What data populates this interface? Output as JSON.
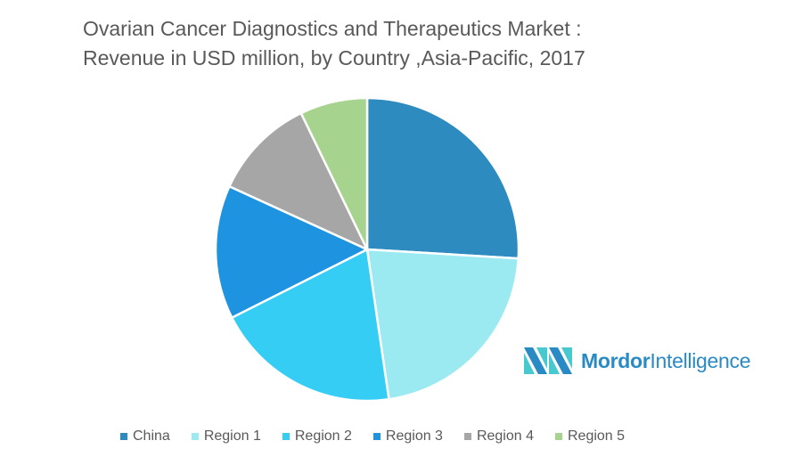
{
  "chart_data": {
    "type": "pie",
    "title": "Ovarian Cancer Diagnostics and Therapeutics Market : Revenue in USD million, by Country ,Asia-Pacific, 2017",
    "title_lines": [
      "Ovarian Cancer Diagnostics and Therapeutics Market :",
      "Revenue in USD million, by Country ,Asia-Pacific, 2017"
    ],
    "categories": [
      "China",
      "Region 1",
      "Region 2",
      "Region 3",
      "Region 4",
      "Region 5"
    ],
    "values": [
      26,
      21.8,
      19.9,
      14.3,
      11,
      7.2
    ],
    "colors": [
      "#2E8BC0",
      "#9BEAF2",
      "#36CDF5",
      "#1E93DF",
      "#A6A6A6",
      "#A6D38E"
    ],
    "legend_position": "bottom"
  },
  "logo": {
    "bold": "Mordor",
    "light": "Intelligence"
  }
}
